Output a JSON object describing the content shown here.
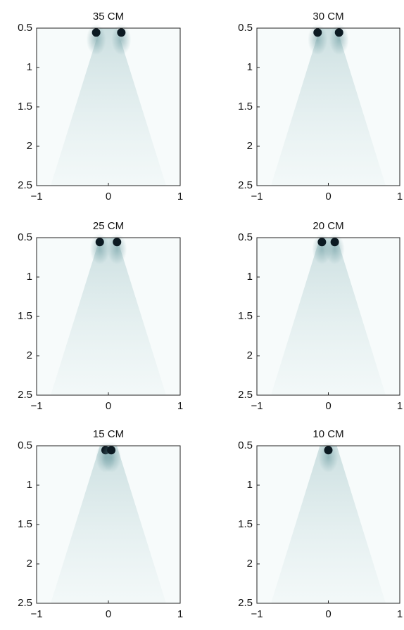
{
  "chart_data": [
    {
      "type": "image",
      "title": "35 CM",
      "xlim": [
        -1,
        1
      ],
      "ylim": [
        2.5,
        0.5
      ],
      "xticks": [
        {
          "value": -1,
          "label": "−1"
        },
        0,
        1
      ],
      "yticks": [
        0.5,
        1,
        1.5,
        2,
        2.5
      ],
      "peaks": {
        "x": [
          -0.17,
          0.18
        ],
        "y": [
          0.52,
          0.52
        ]
      }
    },
    {
      "type": "image",
      "title": "30 CM",
      "xlim": [
        -1,
        1
      ],
      "ylim": [
        2.5,
        0.5
      ],
      "xticks": [
        {
          "value": -1,
          "label": "−1"
        },
        0,
        1
      ],
      "yticks": [
        0.5,
        1,
        1.5,
        2,
        2.5
      ],
      "peaks": {
        "x": [
          -0.15,
          0.15
        ],
        "y": [
          0.52,
          0.52
        ]
      }
    },
    {
      "type": "image",
      "title": "25 CM",
      "xlim": [
        -1,
        1
      ],
      "ylim": [
        2.5,
        0.5
      ],
      "xticks": [
        {
          "value": -1,
          "label": "−1"
        },
        0,
        1
      ],
      "yticks": [
        0.5,
        1,
        1.5,
        2,
        2.5
      ],
      "peaks": {
        "x": [
          -0.12,
          0.12
        ],
        "y": [
          0.52,
          0.52
        ]
      }
    },
    {
      "type": "image",
      "title": "20 CM",
      "xlim": [
        -1,
        1
      ],
      "ylim": [
        2.5,
        0.5
      ],
      "xticks": [
        {
          "value": -1,
          "label": "−1"
        },
        0,
        1
      ],
      "yticks": [
        0.5,
        1,
        1.5,
        2,
        2.5
      ],
      "peaks": {
        "x": [
          -0.09,
          0.09
        ],
        "y": [
          0.52,
          0.52
        ]
      }
    },
    {
      "type": "image",
      "title": "15 CM",
      "xlim": [
        -1,
        1
      ],
      "ylim": [
        2.5,
        0.5
      ],
      "xticks": [
        {
          "value": -1,
          "label": "−1"
        },
        0,
        1
      ],
      "yticks": [
        0.5,
        1,
        1.5,
        2,
        2.5
      ],
      "peaks": {
        "x": [
          -0.04,
          0.04
        ],
        "y": [
          0.52,
          0.52
        ]
      }
    },
    {
      "type": "image",
      "title": "10 CM",
      "xlim": [
        -1,
        1
      ],
      "ylim": [
        2.5,
        0.5
      ],
      "xticks": [
        {
          "value": -1,
          "label": "−1"
        },
        0,
        1
      ],
      "yticks": [
        0.5,
        1,
        1.5,
        2,
        2.5
      ],
      "peaks": {
        "x": [
          0
        ],
        "y": [
          0.52
        ]
      }
    }
  ]
}
